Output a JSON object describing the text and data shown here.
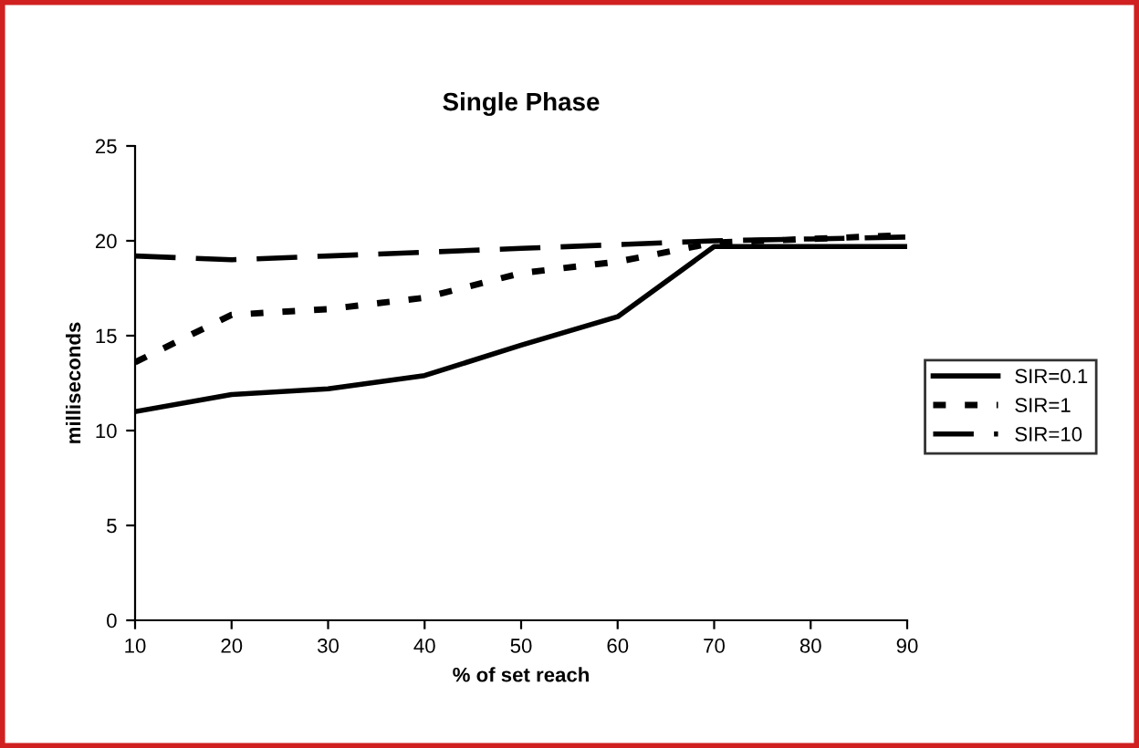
{
  "chart_data": {
    "type": "line",
    "title": "Single Phase",
    "xlabel": "% of set reach",
    "ylabel": "milliseconds",
    "x": [
      10,
      20,
      30,
      40,
      50,
      60,
      70,
      80,
      90
    ],
    "series": [
      {
        "name": "SIR=0.1",
        "color": "#000000",
        "line_style": "solid",
        "values": [
          11.0,
          11.9,
          12.2,
          12.9,
          14.5,
          16.0,
          19.7,
          19.7,
          19.7
        ]
      },
      {
        "name": "SIR=1",
        "color": "#000000",
        "line_style": "dotted",
        "values": [
          13.6,
          16.1,
          16.4,
          17.0,
          18.3,
          18.9,
          19.9,
          20.1,
          20.3
        ]
      },
      {
        "name": "SIR=10",
        "color": "#000000",
        "line_style": "dashed",
        "values": [
          19.2,
          19.0,
          19.2,
          19.4,
          19.6,
          19.8,
          20.0,
          20.1,
          20.2
        ]
      }
    ],
    "xlim": [
      10,
      90
    ],
    "xticks": [
      10,
      20,
      30,
      40,
      50,
      60,
      70,
      80,
      90
    ],
    "ylim": [
      0,
      25
    ],
    "yticks": [
      0,
      5,
      10,
      15,
      20,
      25
    ],
    "grid": false,
    "legend": "right",
    "marker": "none"
  }
}
